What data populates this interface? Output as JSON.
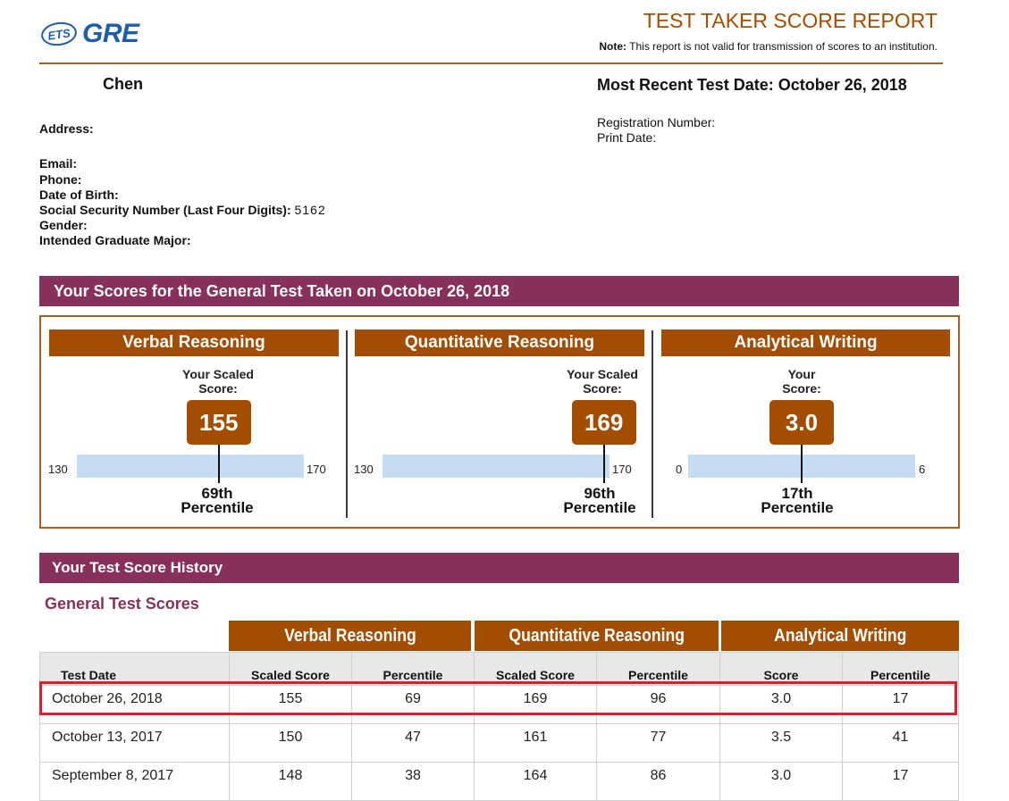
{
  "header": {
    "logo_small": "ETS",
    "logo_big": "GRE",
    "title": "TEST TAKER SCORE REPORT",
    "note_label": "Note:",
    "note_text": " This report is not valid for transmission of scores to an institution."
  },
  "person": {
    "name": "Chen",
    "address_label": "Address:",
    "email_label": "Email:",
    "phone_label": "Phone:",
    "dob_label": "Date of Birth:",
    "ssn_label": "Social Security Number (Last Four Digits):",
    "ssn_value": "5162",
    "gender_label": "Gender:",
    "major_label": "Intended Graduate Major:"
  },
  "right_info": {
    "recent_test": "Most Recent Test Date: October 26, 2018",
    "registration_label": "Registration Number:",
    "print_label": "Print Date:"
  },
  "scores_section": {
    "title": "Your Scores for the General Test Taken on October 26, 2018",
    "sections": [
      {
        "name": "Verbal Reasoning",
        "label_l1": "Your Scaled",
        "label_l2": "Score:",
        "score": "155",
        "min": "130",
        "max": "170",
        "score_fraction": 0.625,
        "pct_line1": "69th",
        "pct_line2": "Percentile"
      },
      {
        "name": "Quantitative Reasoning",
        "label_l1": "Your Scaled",
        "label_l2": "Score:",
        "score": "169",
        "min": "130",
        "max": "170",
        "score_fraction": 0.975,
        "pct_line1": "96th",
        "pct_line2": "Percentile"
      },
      {
        "name": "Analytical Writing",
        "label_l1": "Your",
        "label_l2": "Score:",
        "score": "3.0",
        "min": "0",
        "max": "6",
        "score_fraction": 0.5,
        "pct_line1": "17th",
        "pct_line2": "Percentile"
      }
    ]
  },
  "history": {
    "title": "Your Test Score History",
    "subtitle": "General Test Scores",
    "groups": [
      "Verbal Reasoning",
      "Quantitative Reasoning",
      "Analytical Writing"
    ],
    "columns": [
      "Test Date",
      "Scaled Score",
      "Percentile",
      "Scaled Score",
      "Percentile",
      "Score",
      "Percentile"
    ],
    "rows": [
      [
        "October 26, 2018",
        "155",
        "69",
        "169",
        "96",
        "3.0",
        "17"
      ],
      [
        "October 13, 2017",
        "150",
        "47",
        "161",
        "77",
        "3.5",
        "41"
      ],
      [
        "September 8, 2017",
        "148",
        "38",
        "164",
        "86",
        "3.0",
        "17"
      ]
    ],
    "highlight_color": "#e11d2a"
  },
  "colors": {
    "accent_orange": "#a34d00",
    "purple": "#88305c",
    "brand_blue": "#1f5da8",
    "scale_blue": "#c6dcf0"
  }
}
